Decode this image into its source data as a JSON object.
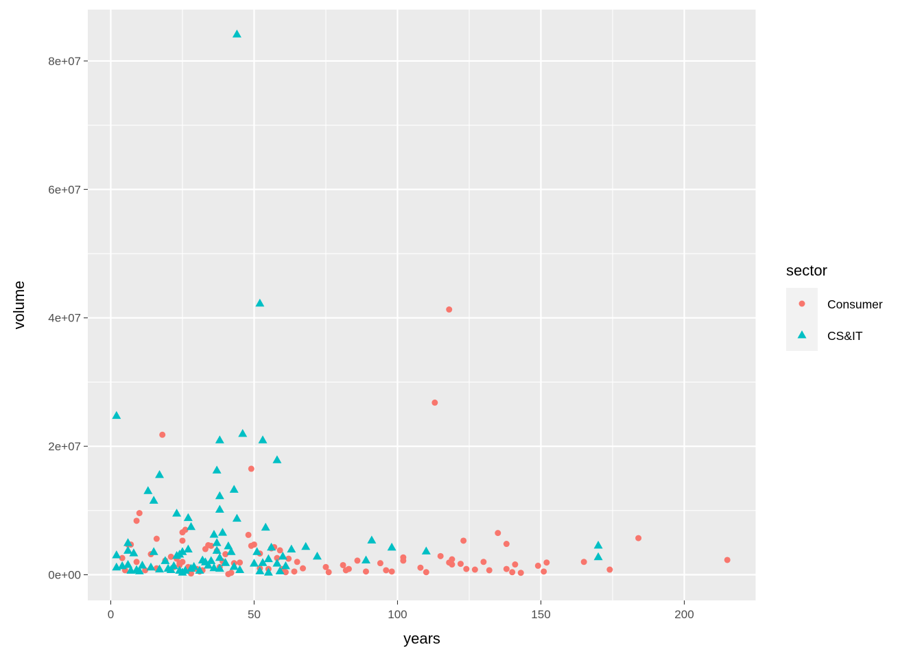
{
  "colors": {
    "panel": "#EBEBEB",
    "grid": "#FFFFFF",
    "consumer": "#F8766D",
    "csit": "#00BFC4",
    "axis_text": "#4D4D4D",
    "legend_key": "#F2F2F2"
  },
  "chart_data": {
    "type": "scatter",
    "xlabel": "years",
    "ylabel": "volume",
    "xlim": [
      -8,
      225
    ],
    "ylim": [
      -4000000,
      88000000
    ],
    "x_ticks": [
      0,
      50,
      100,
      150,
      200
    ],
    "x_tick_labels": [
      "0",
      "50",
      "100",
      "150",
      "200"
    ],
    "y_ticks": [
      0,
      20000000,
      40000000,
      60000000,
      80000000
    ],
    "y_tick_labels": [
      "0e+00",
      "2e+07",
      "4e+07",
      "6e+07",
      "8e+07"
    ],
    "grid": true,
    "legend": {
      "title": "sector",
      "position": "right"
    },
    "series": [
      {
        "name": "Consumer",
        "marker": "circle",
        "points": [
          [
            4,
            2600000
          ],
          [
            5,
            700000
          ],
          [
            6,
            4700000
          ],
          [
            7,
            4700000
          ],
          [
            9,
            8400000
          ],
          [
            10,
            9600000
          ],
          [
            9,
            2000000
          ],
          [
            12,
            700000
          ],
          [
            14,
            3200000
          ],
          [
            16,
            5600000
          ],
          [
            16,
            1000000
          ],
          [
            18,
            21800000
          ],
          [
            19,
            2200000
          ],
          [
            21,
            2800000
          ],
          [
            22,
            1200000
          ],
          [
            23,
            2500000
          ],
          [
            24,
            1800000
          ],
          [
            24,
            1500000
          ],
          [
            25,
            5300000
          ],
          [
            25,
            6600000
          ],
          [
            26,
            7000000
          ],
          [
            25,
            2000000
          ],
          [
            27,
            1200000
          ],
          [
            28,
            200000
          ],
          [
            30,
            900000
          ],
          [
            31,
            500000
          ],
          [
            32,
            700000
          ],
          [
            33,
            4000000
          ],
          [
            34,
            4600000
          ],
          [
            35,
            4500000
          ],
          [
            37,
            3700000
          ],
          [
            38,
            1200000
          ],
          [
            39,
            2100000
          ],
          [
            40,
            3200000
          ],
          [
            41,
            100000
          ],
          [
            42,
            300000
          ],
          [
            43,
            1800000
          ],
          [
            45,
            1900000
          ],
          [
            48,
            6200000
          ],
          [
            49,
            16500000
          ],
          [
            49,
            4500000
          ],
          [
            50,
            4700000
          ],
          [
            52,
            3300000
          ],
          [
            52,
            1000000
          ],
          [
            55,
            900000
          ],
          [
            56,
            4100000
          ],
          [
            57,
            4300000
          ],
          [
            58,
            2600000
          ],
          [
            59,
            3800000
          ],
          [
            60,
            900000
          ],
          [
            61,
            400000
          ],
          [
            62,
            2500000
          ],
          [
            64,
            500000
          ],
          [
            65,
            2000000
          ],
          [
            67,
            1000000
          ],
          [
            75,
            1200000
          ],
          [
            76,
            400000
          ],
          [
            81,
            1500000
          ],
          [
            82,
            700000
          ],
          [
            83,
            900000
          ],
          [
            86,
            2200000
          ],
          [
            89,
            500000
          ],
          [
            94,
            1800000
          ],
          [
            96,
            700000
          ],
          [
            98,
            500000
          ],
          [
            102,
            2700000
          ],
          [
            102,
            2200000
          ],
          [
            108,
            1100000
          ],
          [
            110,
            400000
          ],
          [
            115,
            2900000
          ],
          [
            118,
            41300000
          ],
          [
            113,
            26800000
          ],
          [
            118,
            1900000
          ],
          [
            119,
            2400000
          ],
          [
            119,
            1600000
          ],
          [
            122,
            1700000
          ],
          [
            123,
            5300000
          ],
          [
            124,
            900000
          ],
          [
            127,
            800000
          ],
          [
            130,
            2000000
          ],
          [
            132,
            700000
          ],
          [
            135,
            6500000
          ],
          [
            138,
            4800000
          ],
          [
            138,
            900000
          ],
          [
            140,
            400000
          ],
          [
            141,
            1600000
          ],
          [
            143,
            300000
          ],
          [
            149,
            1400000
          ],
          [
            151,
            500000
          ],
          [
            152,
            1900000
          ],
          [
            165,
            2000000
          ],
          [
            174,
            800000
          ],
          [
            184,
            5700000
          ],
          [
            215,
            2300000
          ]
        ]
      },
      {
        "name": "CS&IT",
        "marker": "triangle",
        "points": [
          [
            2,
            24800000
          ],
          [
            2,
            3100000
          ],
          [
            2,
            1200000
          ],
          [
            4,
            1400000
          ],
          [
            6,
            5000000
          ],
          [
            6,
            3800000
          ],
          [
            6,
            1600000
          ],
          [
            7,
            700000
          ],
          [
            8,
            3400000
          ],
          [
            9,
            800000
          ],
          [
            10,
            600000
          ],
          [
            11,
            1500000
          ],
          [
            13,
            13100000
          ],
          [
            14,
            1200000
          ],
          [
            15,
            11600000
          ],
          [
            15,
            3600000
          ],
          [
            17,
            15600000
          ],
          [
            17,
            900000
          ],
          [
            19,
            2200000
          ],
          [
            20,
            1000000
          ],
          [
            21,
            800000
          ],
          [
            22,
            1400000
          ],
          [
            23,
            9600000
          ],
          [
            23,
            3000000
          ],
          [
            24,
            3200000
          ],
          [
            24,
            700000
          ],
          [
            25,
            3600000
          ],
          [
            25,
            400000
          ],
          [
            26,
            700000
          ],
          [
            27,
            8900000
          ],
          [
            27,
            4000000
          ],
          [
            28,
            7500000
          ],
          [
            28,
            1000000
          ],
          [
            29,
            1300000
          ],
          [
            31,
            700000
          ],
          [
            32,
            2300000
          ],
          [
            33,
            2000000
          ],
          [
            34,
            1500000
          ],
          [
            35,
            2200000
          ],
          [
            36,
            6300000
          ],
          [
            36,
            1100000
          ],
          [
            37,
            16300000
          ],
          [
            37,
            5000000
          ],
          [
            37,
            3800000
          ],
          [
            38,
            21000000
          ],
          [
            38,
            12300000
          ],
          [
            38,
            10200000
          ],
          [
            38,
            2700000
          ],
          [
            38,
            1000000
          ],
          [
            39,
            6600000
          ],
          [
            40,
            1900000
          ],
          [
            41,
            4500000
          ],
          [
            42,
            3600000
          ],
          [
            43,
            13300000
          ],
          [
            43,
            1300000
          ],
          [
            44,
            84200000
          ],
          [
            44,
            8800000
          ],
          [
            45,
            800000
          ],
          [
            46,
            22000000
          ],
          [
            50,
            1800000
          ],
          [
            51,
            3600000
          ],
          [
            52,
            42300000
          ],
          [
            52,
            600000
          ],
          [
            53,
            21000000
          ],
          [
            53,
            1900000
          ],
          [
            54,
            7400000
          ],
          [
            55,
            2500000
          ],
          [
            55,
            400000
          ],
          [
            56,
            4300000
          ],
          [
            58,
            17900000
          ],
          [
            58,
            1800000
          ],
          [
            59,
            600000
          ],
          [
            60,
            2900000
          ],
          [
            61,
            1400000
          ],
          [
            63,
            4000000
          ],
          [
            68,
            4400000
          ],
          [
            72,
            2900000
          ],
          [
            89,
            2300000
          ],
          [
            91,
            5400000
          ],
          [
            98,
            4300000
          ],
          [
            110,
            3700000
          ],
          [
            170,
            4600000
          ],
          [
            170,
            2800000
          ]
        ]
      }
    ]
  }
}
